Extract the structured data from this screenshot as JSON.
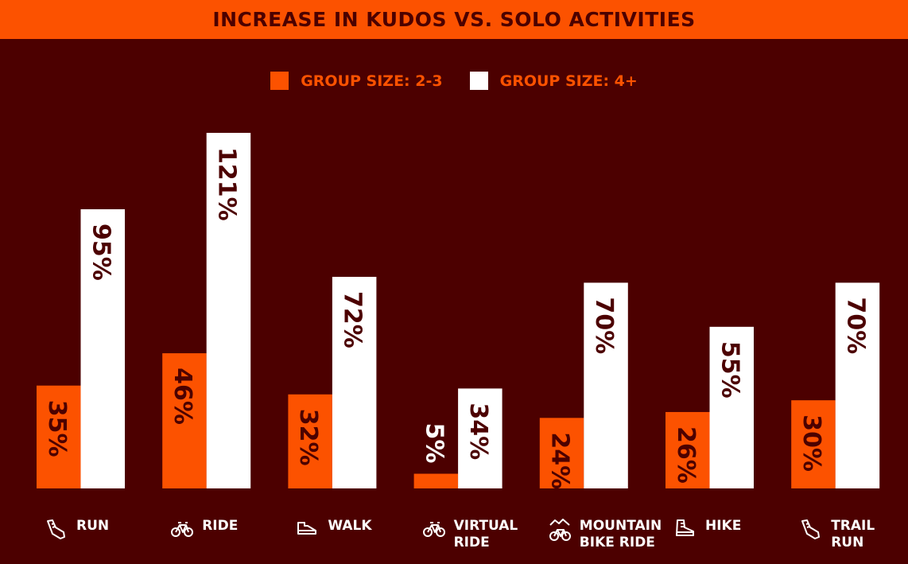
{
  "chart_data": {
    "type": "bar",
    "title": "INCREASE IN KUDOS VS. SOLO ACTIVITIES",
    "categories": [
      "RUN",
      "RIDE",
      "WALK",
      "VIRTUAL RIDE",
      "MOUNTAIN BIKE RIDE",
      "HIKE",
      "TRAIL RUN"
    ],
    "category_lines": [
      [
        "RUN"
      ],
      [
        "RIDE"
      ],
      [
        "WALK"
      ],
      [
        "VIRTUAL",
        "RIDE"
      ],
      [
        "MOUNTAIN",
        "BIKE RIDE"
      ],
      [
        "HIKE"
      ],
      [
        "TRAIL",
        "RUN"
      ]
    ],
    "category_icons": [
      "running-shoe-icon",
      "bike-icon",
      "walking-shoe-icon",
      "bike-icon",
      "mountain-bike-icon",
      "hiking-boot-icon",
      "trail-shoe-icon"
    ],
    "series": [
      {
        "name": "GROUP SIZE: 2-3",
        "color": "#fc5200",
        "values": [
          35,
          46,
          32,
          5,
          24,
          26,
          30
        ],
        "labels": [
          "35%",
          "46%",
          "32%",
          "5%",
          "24%",
          "26%",
          "30%"
        ]
      },
      {
        "name": "GROUP SIZE: 4+",
        "color": "#ffffff",
        "values": [
          95,
          121,
          72,
          34,
          70,
          55,
          70
        ],
        "labels": [
          "95%",
          "121%",
          "72%",
          "34%",
          "70%",
          "55%",
          "70%"
        ]
      }
    ],
    "unit": "%",
    "ylim": [
      0,
      121
    ],
    "grid": false,
    "legend_placement": "top-center",
    "background": "#4c0000",
    "label_color": "#4c0000"
  }
}
